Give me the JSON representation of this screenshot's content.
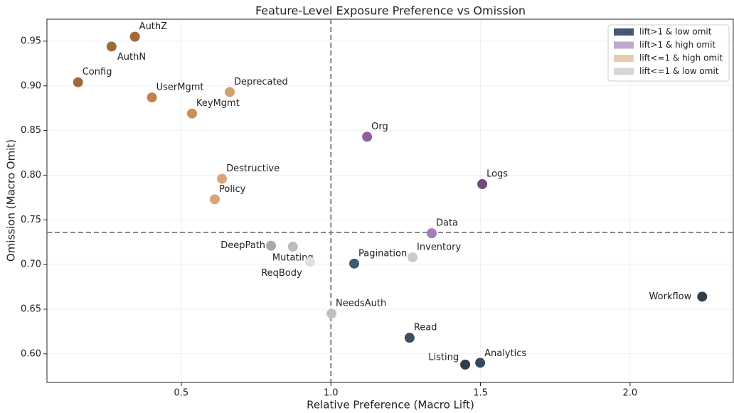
{
  "chart_data": {
    "type": "scatter",
    "title": "Feature-Level Exposure Preference vs Omission",
    "x_label": "Relative Preference (Macro Lift)",
    "y_label": "Omission (Macro Omit)",
    "xlim": [
      0.051,
      2.345
    ],
    "ylim": [
      0.568,
      0.9746
    ],
    "xticks": [
      0.5,
      {
        "value": 1.0,
        "label": "1.0"
      },
      1.5,
      {
        "value": 2.0,
        "label": "2.0"
      }
    ],
    "yticks": [
      {
        "value": 0.6,
        "label": "0.60"
      },
      0.65,
      {
        "value": 0.7,
        "label": "0.70"
      },
      0.75,
      {
        "value": 0.8,
        "label": "0.80"
      },
      0.85,
      {
        "value": 0.9,
        "label": "0.90"
      },
      0.95
    ],
    "grid": true,
    "reference_lines": {
      "x": 1.0,
      "y": 0.736
    },
    "legend": "upper right",
    "series": [
      {
        "name": "lift>1 & low omit",
        "color": "#44586e",
        "labels": [
          "Pagination",
          "Inventory",
          "Workflow",
          "Read",
          "Listing",
          "Analytics"
        ],
        "x": [
          1.078,
          1.273,
          2.241,
          1.263,
          1.449,
          1.499
        ],
        "values": [
          0.701,
          0.708,
          0.664,
          0.618,
          0.588,
          0.59
        ],
        "point_colors": [
          "#415a70",
          "#c8ccd0",
          "#2f3e4b",
          "#3c4e60",
          "#2f3e4b",
          "#34495b"
        ]
      },
      {
        "name": "lift>1 & high omit",
        "color": "#c3a6cb",
        "labels": [
          "Org",
          "Logs",
          "Data"
        ],
        "x": [
          1.121,
          1.506,
          1.337
        ],
        "values": [
          0.843,
          0.79,
          0.735
        ],
        "point_colors": [
          "#8e5fa0",
          "#6e4a7e",
          "#a57db3"
        ]
      },
      {
        "name": "lift<=1 & high omit",
        "color": "#e8cbb0",
        "labels": [
          "AuthZ",
          "AuthN",
          "Config",
          "UserMgmt",
          "Deprecated",
          "KeyMgmt",
          "Destructive",
          "Policy"
        ],
        "x": [
          0.345,
          0.267,
          0.155,
          0.402,
          0.662,
          0.536,
          0.636,
          0.612
        ],
        "values": [
          0.955,
          0.944,
          0.904,
          0.887,
          0.893,
          0.869,
          0.796,
          0.773
        ],
        "point_colors": [
          "#a0693a",
          "#9c6b3c",
          "#a0693a",
          "#c0834a",
          "#d3a06e",
          "#c98f57",
          "#dba57a",
          "#d9a57d"
        ]
      },
      {
        "name": "lift<=1 & low omit",
        "color": "#d5d5d5",
        "labels": [
          "DeepPath",
          "Mutating",
          "ReqBody",
          "NeedsAuth"
        ],
        "x": [
          0.8,
          0.873,
          0.93,
          1.002
        ],
        "values": [
          0.721,
          0.72,
          0.703,
          0.645
        ],
        "point_colors": [
          "#a8a8a8",
          "#bcbcbc",
          "#e0e0e0",
          "#c0c0c0"
        ]
      }
    ]
  }
}
